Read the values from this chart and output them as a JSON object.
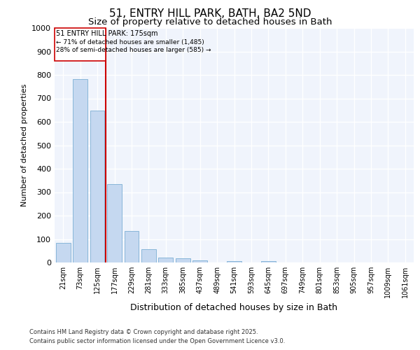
{
  "title_line1": "51, ENTRY HILL PARK, BATH, BA2 5ND",
  "title_line2": "Size of property relative to detached houses in Bath",
  "xlabel": "Distribution of detached houses by size in Bath",
  "ylabel": "Number of detached properties",
  "categories": [
    "21sqm",
    "73sqm",
    "125sqm",
    "177sqm",
    "229sqm",
    "281sqm",
    "333sqm",
    "385sqm",
    "437sqm",
    "489sqm",
    "541sqm",
    "593sqm",
    "645sqm",
    "697sqm",
    "749sqm",
    "801sqm",
    "853sqm",
    "905sqm",
    "957sqm",
    "1009sqm",
    "1061sqm"
  ],
  "values": [
    83,
    783,
    648,
    335,
    133,
    58,
    22,
    17,
    10,
    0,
    7,
    0,
    5,
    0,
    0,
    0,
    0,
    0,
    0,
    0,
    0
  ],
  "bar_color": "#c5d8f0",
  "bar_edge_color": "#7bafd4",
  "marker_label": "51 ENTRY HILL PARK: 175sqm",
  "marker_pct_smaller": "← 71% of detached houses are smaller (1,485)",
  "marker_pct_larger": "28% of semi-detached houses are larger (585) →",
  "ylim": [
    0,
    1000
  ],
  "yticks": [
    0,
    100,
    200,
    300,
    400,
    500,
    600,
    700,
    800,
    900,
    1000
  ],
  "bg_color": "#ffffff",
  "plot_bg_color": "#f0f4fc",
  "grid_color": "#ffffff",
  "marker_line_color": "#cc0000",
  "annotation_box_color": "#cc0000",
  "footnote1": "Contains HM Land Registry data © Crown copyright and database right 2025.",
  "footnote2": "Contains public sector information licensed under the Open Government Licence v3.0."
}
